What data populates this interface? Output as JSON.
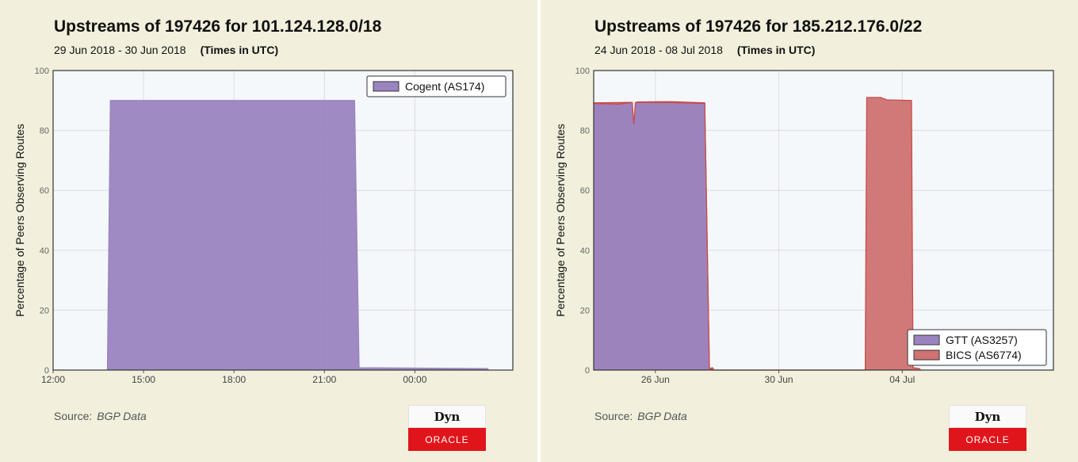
{
  "colors": {
    "background": "#f2efdc",
    "plot_bg": "#f5f8fb",
    "cogent": "#9a84c0",
    "gtt": "#9a84c0",
    "bics": "#cf7272",
    "bics_line": "#c94a4a",
    "oracle_red": "#e0151b"
  },
  "branding": {
    "logo_top": "Dyn",
    "logo_bottom": "ORACLE"
  },
  "chart_data": [
    {
      "type": "area",
      "title": "Upstreams of 197426 for 101.124.128.0/18",
      "date_range": "29 Jun 2018 - 30 Jun 2018",
      "time_note": "(Times in UTC)",
      "ylabel": "Percentage of Peers Observing Routes",
      "ylim": [
        0,
        100
      ],
      "yticks": [
        "0",
        "20",
        "40",
        "60",
        "80",
        "100"
      ],
      "xlim": [
        12,
        27.25
      ],
      "xticks": [
        {
          "x": 12,
          "label": "12:00"
        },
        {
          "x": 15,
          "label": "15:00"
        },
        {
          "x": 18,
          "label": "18:00"
        },
        {
          "x": 21,
          "label": "21:00"
        },
        {
          "x": 24,
          "label": "00:00"
        }
      ],
      "grid": true,
      "legend_position": "top-right",
      "series": [
        {
          "name": "Cogent (AS174)",
          "color": "#9a84c0",
          "line": "#9a84c0",
          "points": [
            [
              13.8,
              0
            ],
            [
              13.9,
              90
            ],
            [
              22.0,
              90
            ],
            [
              22.15,
              0.8
            ],
            [
              26.4,
              0.5
            ],
            [
              26.45,
              0
            ]
          ]
        }
      ],
      "source_label": "Source:",
      "source_value": "BGP Data"
    },
    {
      "type": "area",
      "title": "Upstreams of 197426 for 185.212.176.0/22",
      "date_range": "24 Jun 2018 - 08 Jul 2018",
      "time_note": "(Times in UTC)",
      "ylabel": "Percentage of Peers Observing Routes",
      "ylim": [
        0,
        100
      ],
      "yticks": [
        "0",
        "20",
        "40",
        "60",
        "80",
        "100"
      ],
      "xlim": [
        0,
        14.9
      ],
      "xticks": [
        {
          "x": 2,
          "label": "26 Jun"
        },
        {
          "x": 6,
          "label": "30 Jun"
        },
        {
          "x": 10,
          "label": "04 Jul"
        }
      ],
      "grid": true,
      "legend_position": "bottom-right",
      "series": [
        {
          "name": "GTT (AS3257)",
          "color": "#9a84c0",
          "line": "#c94a4a",
          "points": [
            [
              0,
              89
            ],
            [
              0.8,
              88.8
            ],
            [
              1.25,
              89.3
            ],
            [
              1.3,
              82
            ],
            [
              1.35,
              89.3
            ],
            [
              2.5,
              89.3
            ],
            [
              3.6,
              89
            ],
            [
              3.75,
              0.5
            ],
            [
              3.9,
              0
            ]
          ]
        },
        {
          "name": "BICS (AS6774)",
          "color": "#cf7272",
          "line": "#c94a4a",
          "points": [
            [
              0,
              89.2
            ],
            [
              1.2,
              89.4
            ],
            [
              1.3,
              82.5
            ],
            [
              1.4,
              89.5
            ],
            [
              2.5,
              89.6
            ],
            [
              3.6,
              89.2
            ],
            [
              3.75,
              0.5
            ],
            [
              3.85,
              0.8
            ],
            [
              3.9,
              0
            ],
            [
              8.8,
              0
            ],
            [
              8.85,
              91
            ],
            [
              9.3,
              91
            ],
            [
              9.5,
              90.2
            ],
            [
              10.3,
              90
            ],
            [
              10.35,
              0.8
            ],
            [
              10.55,
              0.5
            ],
            [
              10.6,
              0
            ]
          ]
        }
      ],
      "source_label": "Source:",
      "source_value": "BGP Data"
    }
  ]
}
